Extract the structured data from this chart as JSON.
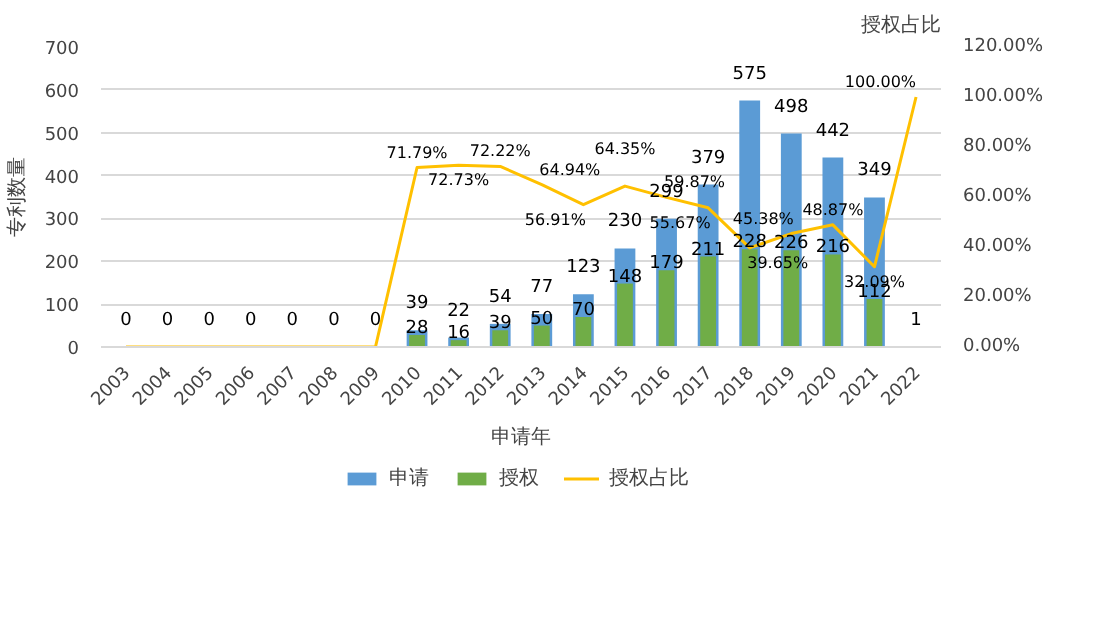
{
  "chart_data": {
    "type": "bar",
    "xlabel": "申请年",
    "ylabel": "专利数量",
    "y2label": "授权占比",
    "categories": [
      "2003",
      "2004",
      "2005",
      "2006",
      "2007",
      "2008",
      "2009",
      "2010",
      "2011",
      "2012",
      "2013",
      "2014",
      "2015",
      "2016",
      "2017",
      "2018",
      "2019",
      "2020",
      "2021",
      "2022"
    ],
    "series": [
      {
        "name": "申请",
        "color": "#5b9bd5",
        "values": [
          0,
          0,
          0,
          0,
          0,
          0,
          0,
          39,
          22,
          54,
          77,
          123,
          230,
          299,
          379,
          575,
          498,
          442,
          349,
          1
        ],
        "value_labels": [
          "0",
          "0",
          "0",
          "0",
          "0",
          "0",
          "0",
          "39",
          "22",
          "54",
          "77",
          "123",
          "230",
          "299",
          "379",
          "575",
          "498",
          "442",
          "349",
          "1"
        ]
      },
      {
        "name": "授权",
        "color": "#70ad47",
        "values": [
          0,
          0,
          0,
          0,
          0,
          0,
          0,
          28,
          16,
          39,
          50,
          70,
          148,
          179,
          211,
          228,
          226,
          216,
          112,
          1
        ],
        "value_labels": [
          null,
          null,
          null,
          null,
          null,
          null,
          null,
          "28",
          "16",
          "39",
          "50",
          "70",
          "148",
          "179",
          "211",
          "228",
          "226",
          "216",
          "112",
          null
        ]
      },
      {
        "name": "授权占比",
        "type": "line",
        "axis": "y2",
        "color": "#ffc000",
        "values": [
          0,
          0,
          0,
          0,
          0,
          0,
          0,
          71.79,
          72.73,
          72.22,
          64.94,
          56.91,
          64.35,
          59.87,
          55.67,
          39.65,
          45.38,
          48.87,
          32.09,
          100.0
        ],
        "value_labels": [
          null,
          null,
          null,
          null,
          null,
          null,
          null,
          "71.79%",
          "72.73%",
          "72.22%",
          "64.94%",
          "56.91%",
          "64.35%",
          "59.87%",
          "55.67%",
          "39.65%",
          "45.38%",
          "48.87%",
          "32.09%",
          "100.00%"
        ]
      }
    ],
    "ylim": [
      0,
      700
    ],
    "yticks": [
      0,
      100,
      200,
      300,
      400,
      500,
      600,
      700
    ],
    "y2lim": [
      0,
      120
    ],
    "y2ticks": [
      {
        "value": 0,
        "label": "0.00%"
      },
      {
        "value": 20,
        "label": "20.00%"
      },
      {
        "value": 40,
        "label": "40.00%"
      },
      {
        "value": 60,
        "label": "60.00%"
      },
      {
        "value": 80,
        "label": "80.00%"
      },
      {
        "value": 100,
        "label": "100.00%"
      },
      {
        "value": 120,
        "label": "120.00%"
      }
    ],
    "grid": "y",
    "legend": "bottom",
    "line_style": "solid",
    "marker": "none"
  }
}
